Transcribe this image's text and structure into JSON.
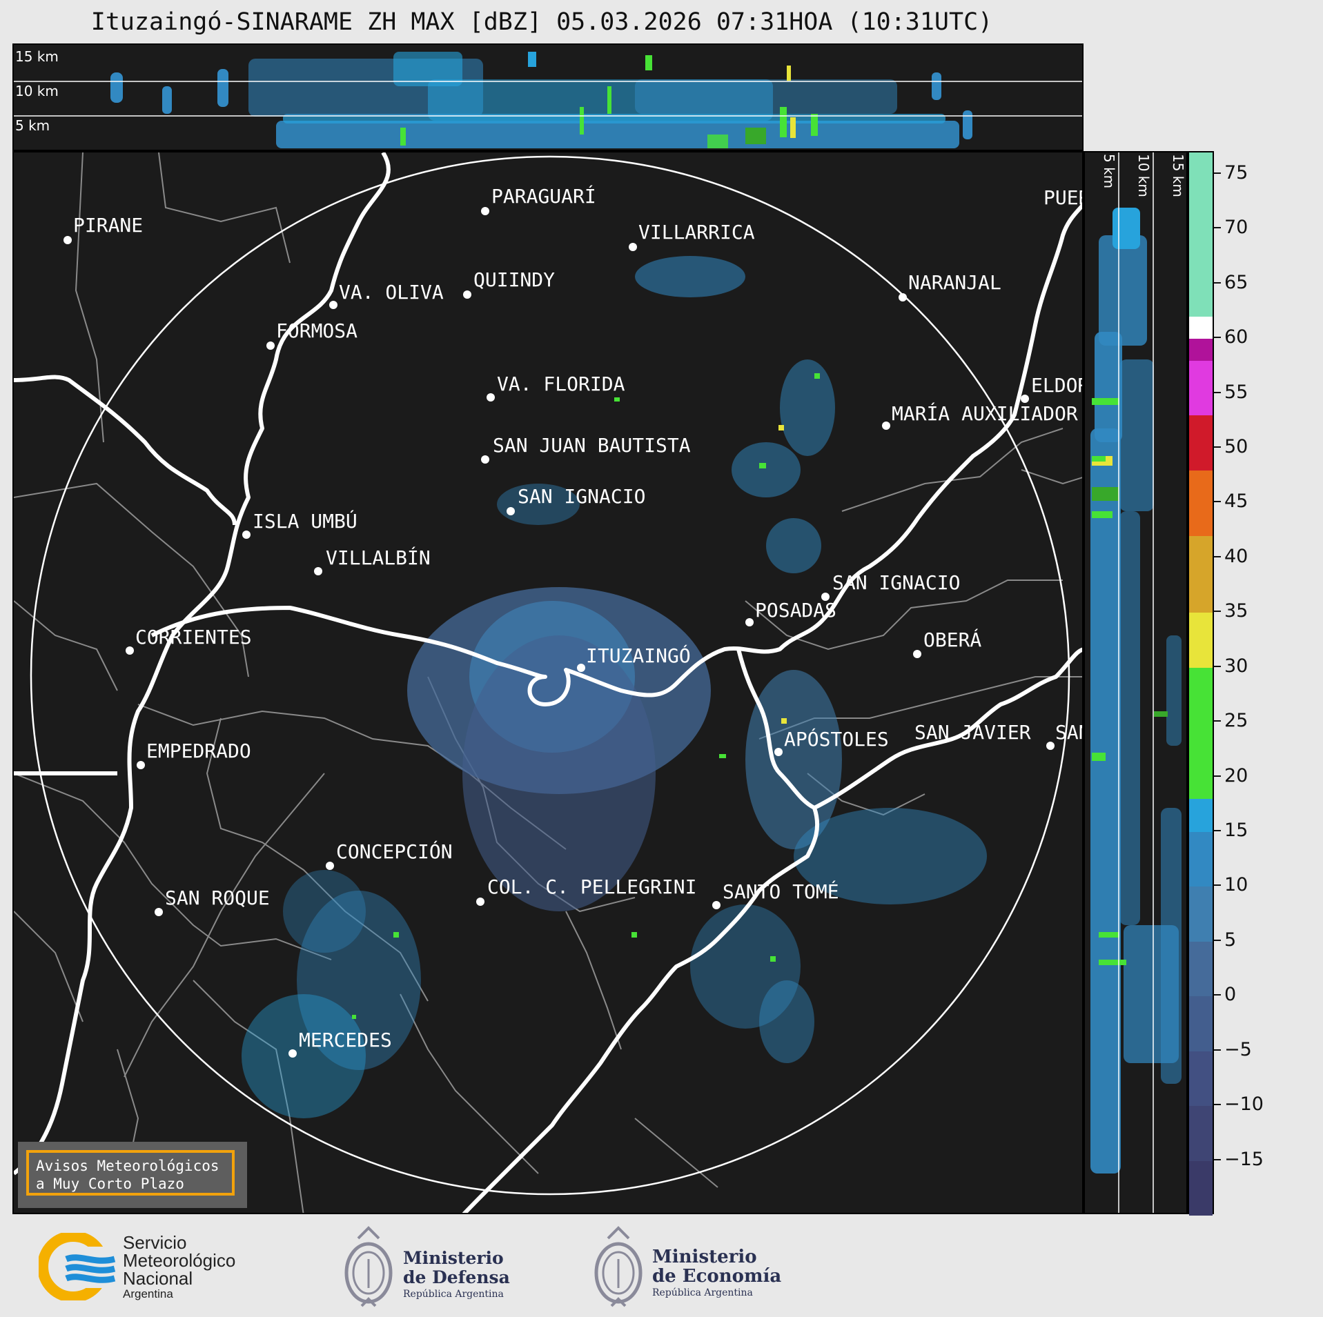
{
  "title": "Ituzaingó-SINARAME ZH MAX [dBZ] 05.03.2026 07:31HOA (10:31UTC)",
  "top_panel": {
    "labels": [
      "15 km",
      "10 km",
      "5 km"
    ]
  },
  "right_panel": {
    "labels": [
      "5 km",
      "10 km",
      "15 km"
    ]
  },
  "colorbar": {
    "ticks": [
      "75",
      "70",
      "65",
      "60",
      "55",
      "50",
      "45",
      "40",
      "35",
      "30",
      "25",
      "20",
      "15",
      "10",
      "5",
      "0",
      "−5",
      "−10",
      "−15"
    ],
    "colors": {
      "-20": "#3a3a68",
      "-15": "#3f4574",
      "-10": "#425082",
      "-5": "#435e8e",
      "0": "#456b9a",
      "5": "#3f7fb0",
      "10": "#3289c2",
      "15": "#27a3dc",
      "20": "#47e236",
      "25": "#38a82a",
      "30": "#2a7a22",
      "35": "#e8e43a",
      "40": "#d6a52a",
      "45": "#e86a1a",
      "50": "#d01a2a",
      "55": "#e03ae0",
      "60": "#b0129a",
      "65": "#ffffff",
      "75": "#7fe0b8"
    }
  },
  "cities": [
    {
      "name": "PIRANE"
    },
    {
      "name": "PARAGUARÍ"
    },
    {
      "name": "VILLARRICA"
    },
    {
      "name": "QUIINDY"
    },
    {
      "name": "VA. OLIVA"
    },
    {
      "name": "NARANJAL"
    },
    {
      "name": "FORMOSA"
    },
    {
      "name": "VA. FLORIDA"
    },
    {
      "name": "ELDOR"
    },
    {
      "name": "MARÍA AUXILIADOR"
    },
    {
      "name": "SAN JUAN BAUTISTA"
    },
    {
      "name": "SAN IGNACIO"
    },
    {
      "name": "ISLA UMBÚ"
    },
    {
      "name": "VILLALBÍN"
    },
    {
      "name": "SAN IGNACIO"
    },
    {
      "name": "POSADAS"
    },
    {
      "name": "CORRIENTES"
    },
    {
      "name": "ITUZAINGÓ"
    },
    {
      "name": "OBERÁ"
    },
    {
      "name": "APÓSTOLES"
    },
    {
      "name": "SAN JAVIER"
    },
    {
      "name": "SAN"
    },
    {
      "name": "EMPEDRADO"
    },
    {
      "name": "CONCEPCIÓN"
    },
    {
      "name": "COL. C. PELLEGRINI"
    },
    {
      "name": "SANTO TOMÉ"
    },
    {
      "name": "SAN ROQUE"
    },
    {
      "name": "MERCEDES"
    },
    {
      "name": "PUER"
    }
  ],
  "warning": {
    "line1": "Avisos Meteorológicos",
    "line2": "a Muy Corto Plazo"
  },
  "logos": {
    "smn": {
      "line1": "Servicio",
      "line2": "Meteorológico",
      "line3": "Nacional",
      "line4": "Argentina"
    },
    "defensa": {
      "line1": "Ministerio",
      "line2": "de Defensa",
      "line3": "República Argentina"
    },
    "economia": {
      "line1": "Ministerio",
      "line2": "de Economía",
      "line3": "República Argentina"
    }
  }
}
